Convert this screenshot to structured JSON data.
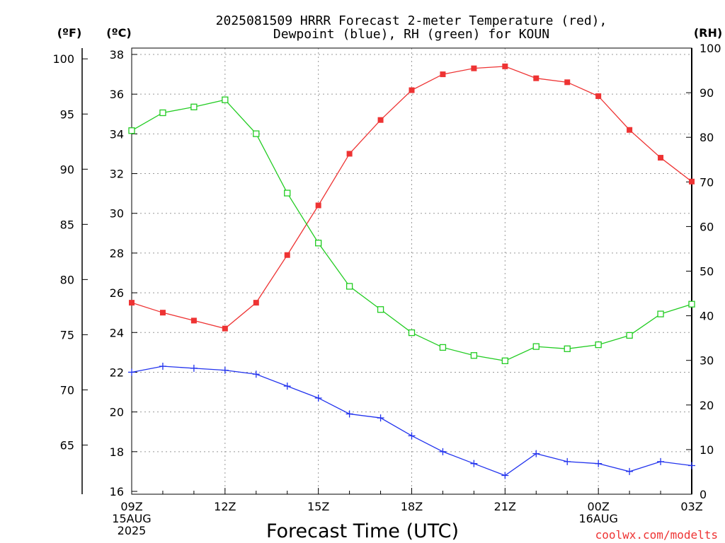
{
  "chart_data": {
    "type": "line",
    "title": "2025081509 HRRR Forecast 2-meter Temperature (red),",
    "subtitle": "Dewpoint (blue), RH (green) for KOUN",
    "xlabel": "Forecast Time (UTC)",
    "left_unit_f": "(ºF)",
    "left_unit_c": "(ºC)",
    "right_unit": "(RH)",
    "watermark": "coolwx.com/modelts",
    "colors": {
      "temperature": "#ee3333",
      "dewpoint": "#2233ee",
      "rh": "#22cc22"
    },
    "x_hours": [
      0,
      1,
      2,
      3,
      4,
      5,
      6,
      7,
      8,
      9,
      10,
      11,
      12,
      13,
      14,
      15,
      16,
      17,
      18
    ],
    "x_tick_labels": [
      {
        "hour": 0,
        "lines": [
          "09Z",
          "15AUG",
          "2025"
        ]
      },
      {
        "hour": 3,
        "lines": [
          "12Z"
        ]
      },
      {
        "hour": 6,
        "lines": [
          "15Z"
        ]
      },
      {
        "hour": 9,
        "lines": [
          "18Z"
        ]
      },
      {
        "hour": 12,
        "lines": [
          "21Z"
        ]
      },
      {
        "hour": 15,
        "lines": [
          "00Z",
          "16AUG"
        ]
      },
      {
        "hour": 18,
        "lines": [
          "03Z"
        ]
      }
    ],
    "ylim_c": [
      16,
      38
    ],
    "yticks_c": [
      16,
      18,
      20,
      22,
      24,
      26,
      28,
      30,
      32,
      34,
      36,
      38
    ],
    "yticks_f": [
      65,
      70,
      75,
      80,
      85,
      90,
      95,
      100
    ],
    "ylim_rh": [
      0,
      100
    ],
    "yticks_rh": [
      0,
      10,
      20,
      30,
      40,
      50,
      60,
      70,
      80,
      90,
      100
    ],
    "grid": true,
    "series": [
      {
        "key": "temperature",
        "axis": "c",
        "values": [
          25.5,
          25.0,
          24.6,
          24.2,
          25.5,
          27.9,
          30.4,
          33.0,
          34.7,
          36.2,
          37.0,
          37.3,
          37.4,
          36.8,
          36.6,
          35.9,
          34.2,
          32.8,
          31.6
        ]
      },
      {
        "key": "dewpoint",
        "axis": "c",
        "values": [
          22.0,
          22.3,
          22.2,
          22.1,
          21.9,
          21.3,
          20.7,
          19.9,
          19.7,
          18.8,
          18.0,
          17.4,
          16.8,
          17.9,
          17.5,
          17.4,
          17.0,
          17.5,
          17.3
        ]
      },
      {
        "key": "rh",
        "axis": "rh",
        "values": [
          81.5,
          85.5,
          86.8,
          88.4,
          80.8,
          67.5,
          56.3,
          46.6,
          41.4,
          36.2,
          32.9,
          31.1,
          29.9,
          33.1,
          32.6,
          33.5,
          35.6,
          40.4,
          42.6
        ]
      }
    ]
  }
}
